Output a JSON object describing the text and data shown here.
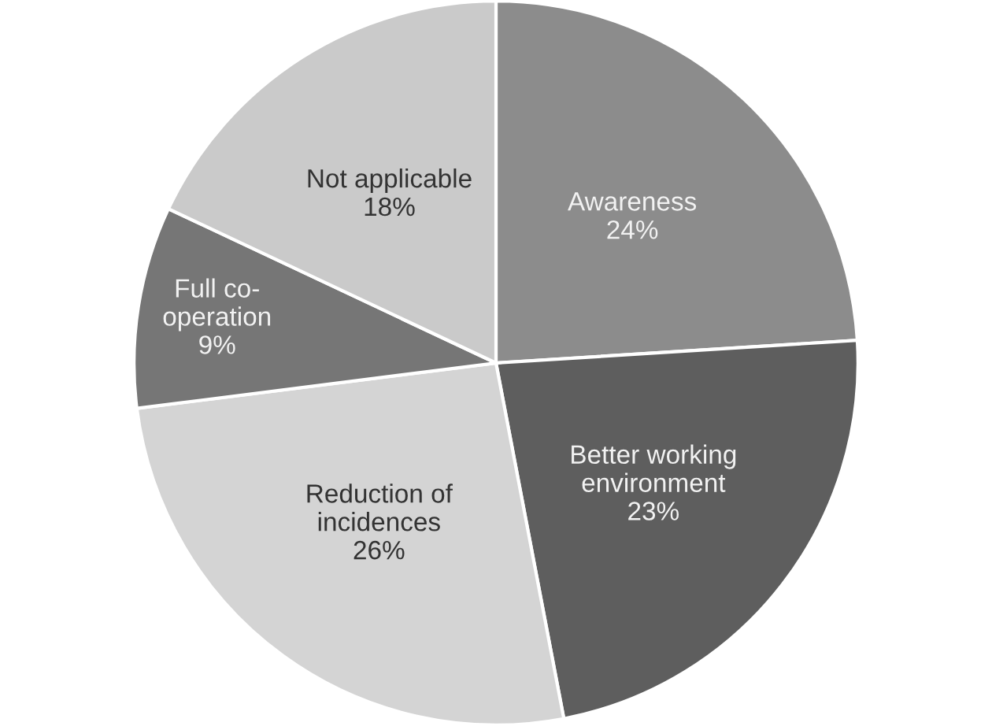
{
  "chart_data": {
    "type": "pie",
    "categories": [
      "Awareness",
      "Better working\nenvironment",
      "Reduction of\nincidences",
      "Full co-\noperation",
      "Not applicable"
    ],
    "values": [
      24,
      23,
      26,
      9,
      18
    ],
    "value_labels": [
      "24%",
      "23%",
      "26%",
      "9%",
      "18%"
    ],
    "colors": [
      "#8c8c8c",
      "#5e5e5e",
      "#d4d4d4",
      "#767676",
      "#cacaca"
    ]
  }
}
